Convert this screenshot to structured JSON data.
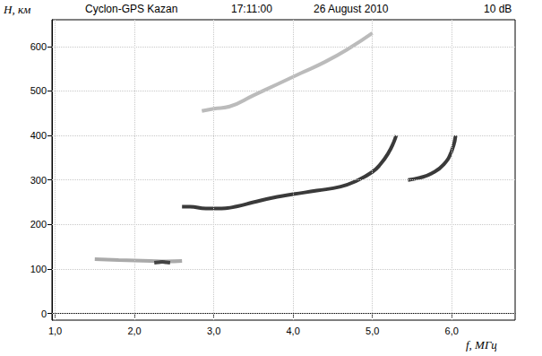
{
  "chart_data": {
    "type": "line",
    "title": "Cyclon-GPS Kazan",
    "annotations": [
      "17:11:00",
      "26 August 2010",
      "10 dB"
    ],
    "x_label": "f, МГц",
    "y_label": "H, км",
    "xlim": [
      0.96,
      6.8
    ],
    "ylim": [
      -15,
      660
    ],
    "xticks": [
      {
        "value": 1,
        "label": "1,0"
      },
      {
        "value": 2,
        "label": "2,0"
      },
      {
        "value": 3,
        "label": "3,0"
      },
      {
        "value": 4,
        "label": "4,0"
      },
      {
        "value": 5,
        "label": "5,0"
      },
      {
        "value": 6,
        "label": "6,0"
      }
    ],
    "yticks": [
      0,
      100,
      200,
      300,
      400,
      500,
      600
    ],
    "grid": true,
    "series": [
      {
        "color": "#aaaaaa",
        "x": [
          1.5,
          1.8,
          2.0,
          2.2,
          2.4,
          2.6
        ],
        "values": [
          122,
          120,
          119,
          118,
          117,
          118
        ]
      },
      {
        "color": "#444444",
        "x": [
          2.25,
          2.3,
          2.35,
          2.4,
          2.45
        ],
        "values": [
          114,
          115,
          116,
          115,
          114
        ]
      },
      {
        "color": "#3a3a3a",
        "x": [
          2.6,
          2.7,
          2.9,
          3.1,
          3.3,
          3.5,
          3.8,
          4.0,
          4.3,
          4.6,
          4.8,
          5.0,
          5.1,
          5.2,
          5.27,
          5.3
        ],
        "values": [
          240,
          240,
          236,
          236,
          241,
          250,
          262,
          268,
          276,
          285,
          298,
          318,
          335,
          360,
          385,
          400
        ]
      },
      {
        "color": "#3a3a3a",
        "x": [
          5.45,
          5.6,
          5.75,
          5.9,
          6.0,
          6.05
        ],
        "values": [
          300,
          305,
          315,
          335,
          365,
          400
        ]
      },
      {
        "color": "#bbbbbb",
        "x": [
          2.85,
          3.0,
          3.2,
          3.5,
          3.8,
          4.1,
          4.4,
          4.7,
          5.0
        ],
        "values": [
          455,
          460,
          465,
          490,
          515,
          540,
          565,
          595,
          630
        ]
      }
    ]
  }
}
